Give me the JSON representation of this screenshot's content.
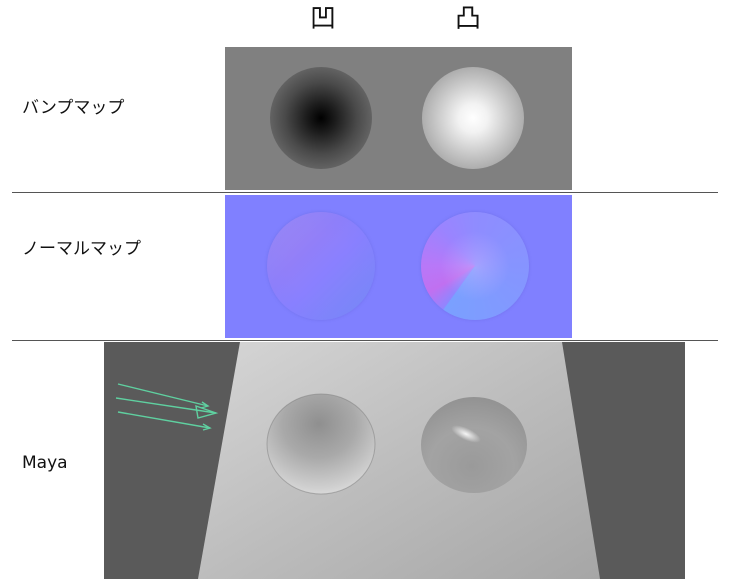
{
  "header": {
    "concave_symbol": "凹",
    "convex_symbol": "凸"
  },
  "rows": [
    {
      "label": "バンプマップ"
    },
    {
      "label": "ノーマルマップ"
    },
    {
      "label": "Maya"
    }
  ],
  "colors": {
    "bump_background": "#808080",
    "normal_background": "#8080ff",
    "viewport_background": "#5a5a5a",
    "light_arrow": "#5fd0a0",
    "divider": "#555555"
  },
  "icons": {
    "light_arrow": "directional-light-icon"
  }
}
